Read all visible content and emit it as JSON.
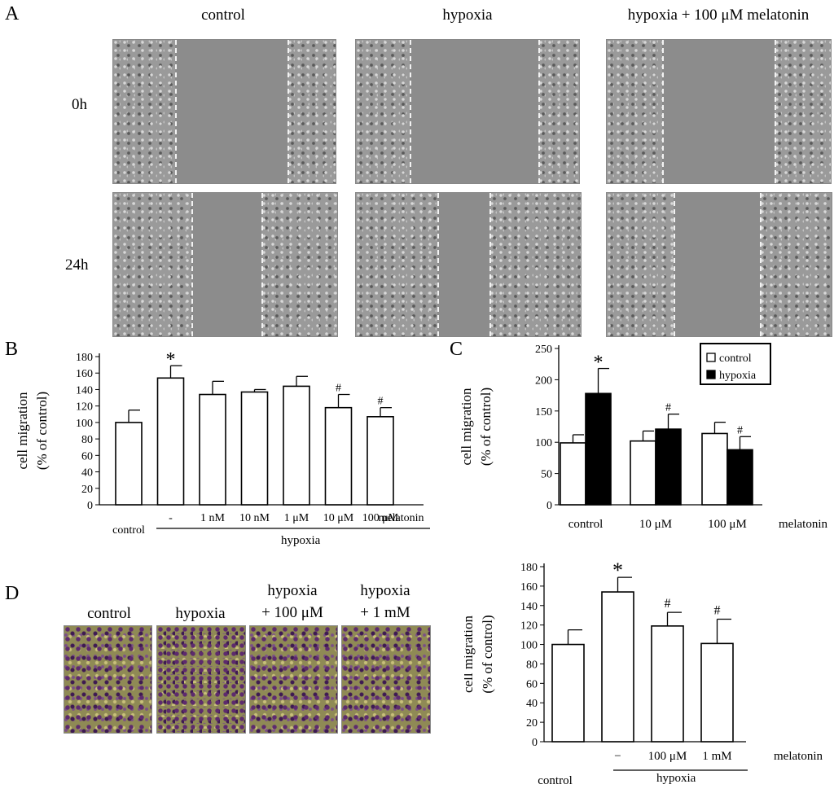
{
  "panelA": {
    "letter": "A",
    "columns": [
      "control",
      "hypoxia",
      "hypoxia + 100 μM melatonin"
    ],
    "rows": [
      "0h",
      "24h"
    ]
  },
  "panelB": {
    "letter": "B",
    "bracket_label": "hypoxia"
  },
  "panelC": {
    "letter": "C"
  },
  "panelD": {
    "letter": "D",
    "image_labels": [
      {
        "line1": "control",
        "line2": ""
      },
      {
        "line1": "hypoxia",
        "line2": ""
      },
      {
        "line1": "hypoxia",
        "line2": "+ 100 μM"
      },
      {
        "line1": "hypoxia",
        "line2": "+ 1 mM"
      }
    ],
    "bracket_label": "hypoxia"
  },
  "chart_data": [
    {
      "id": "B",
      "type": "bar",
      "ylabel_line1": "cell migration",
      "ylabel_line2": "(% of control)",
      "ylim": [
        0,
        180
      ],
      "yticks": [
        0,
        20,
        40,
        60,
        80,
        100,
        120,
        140,
        160,
        180
      ],
      "categories": [
        "control",
        "-",
        "1 nM",
        "10 nM",
        "1 μM",
        "10 μM",
        "100 μM"
      ],
      "values": [
        100,
        154,
        134,
        137,
        144,
        118,
        107
      ],
      "errors": [
        15,
        15,
        16,
        3,
        12,
        16,
        11
      ],
      "annotations": [
        "",
        "*",
        "",
        "",
        "",
        "#",
        "#"
      ],
      "trailing_label": "melatonin",
      "fill": "#ffffff",
      "edge": "#000000"
    },
    {
      "id": "C",
      "type": "bar",
      "ylabel_line1": "cell migration",
      "ylabel_line2": "(% of control)",
      "ylim": [
        0,
        250
      ],
      "yticks": [
        0,
        50,
        100,
        150,
        200,
        250
      ],
      "categories": [
        "control",
        "10 μM",
        "100 μM"
      ],
      "trailing_label": "melatonin",
      "legend_position": "top-right",
      "series": [
        {
          "name": "control",
          "color": "#ffffff",
          "values": [
            99,
            102,
            114
          ],
          "errors": [
            13,
            16,
            18
          ],
          "annotations": [
            "",
            "",
            ""
          ]
        },
        {
          "name": "hypoxia",
          "color": "#000000",
          "values": [
            178,
            121,
            88
          ],
          "errors": [
            40,
            24,
            21
          ],
          "annotations": [
            "*",
            "#",
            "#"
          ]
        }
      ]
    },
    {
      "id": "D",
      "type": "bar",
      "ylabel_line1": "cell migration",
      "ylabel_line2": "(% of control)",
      "ylim": [
        0,
        180
      ],
      "yticks": [
        0,
        20,
        40,
        60,
        80,
        100,
        120,
        140,
        160,
        180
      ],
      "categories": [
        "control",
        "−",
        "100 μM",
        "1 mM"
      ],
      "values": [
        100,
        154,
        119,
        101
      ],
      "errors": [
        15,
        15,
        14,
        25
      ],
      "annotations": [
        "",
        "*",
        "#",
        "#"
      ],
      "trailing_label": "melatonin",
      "fill": "#ffffff",
      "edge": "#000000"
    }
  ]
}
